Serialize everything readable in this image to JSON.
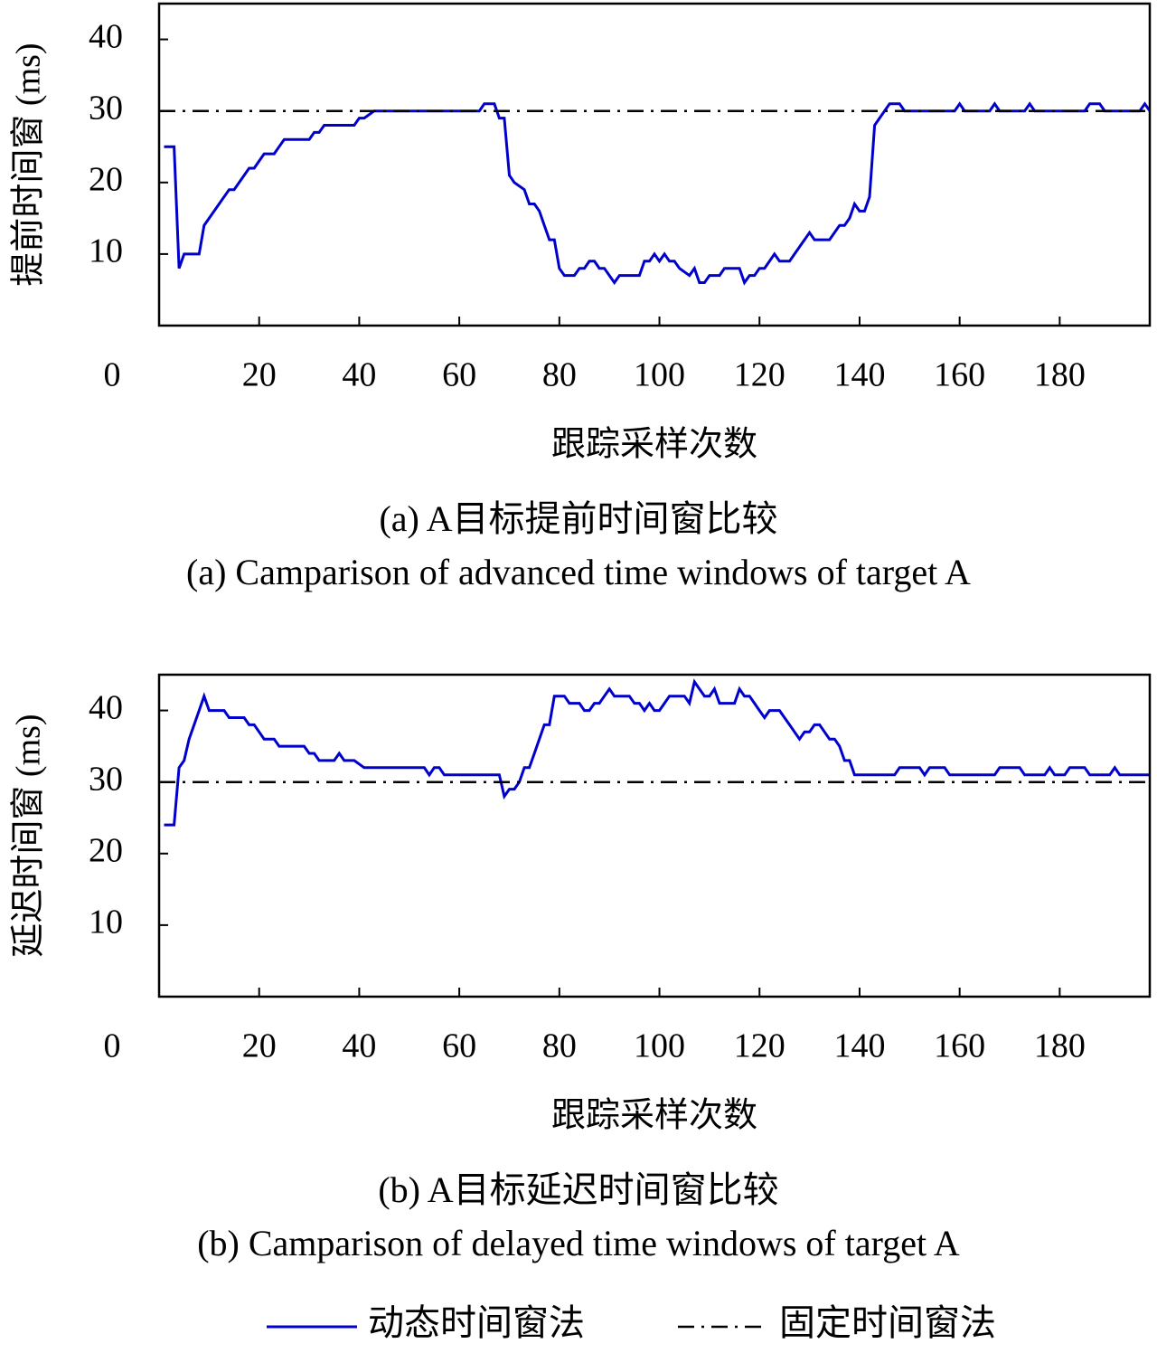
{
  "chart_data": [
    {
      "type": "line",
      "y_label": "提前时间窗 (ms)",
      "x_label": "跟踪采样次数",
      "caption": "(a) A目标提前时间窗比较",
      "caption_en": "(a) Camparison of advanced time windows of target A",
      "xlim": [
        0,
        198
      ],
      "ylim": [
        0,
        45
      ],
      "xticks": [
        0,
        20,
        40,
        60,
        80,
        100,
        120,
        140,
        160,
        180
      ],
      "yticks": [
        10,
        20,
        30,
        40
      ],
      "series": [
        {
          "name": "动态时间窗法",
          "color": "#0000cc",
          "dash": "solid",
          "x": [
            1,
            3,
            4,
            5,
            8,
            9,
            10,
            12,
            14,
            15,
            17,
            18,
            19,
            20,
            21,
            23,
            24,
            25,
            30,
            31,
            32,
            33,
            39,
            40,
            41,
            43,
            64,
            65,
            67,
            68,
            69,
            70,
            71,
            73,
            74,
            75,
            76,
            77,
            78,
            79,
            80,
            81,
            83,
            84,
            85,
            86,
            87,
            88,
            89,
            91,
            92,
            96,
            97,
            98,
            99,
            100,
            101,
            102,
            103,
            104,
            106,
            107,
            108,
            109,
            110,
            112,
            113,
            116,
            117,
            118,
            119,
            120,
            121,
            123,
            124,
            126,
            127,
            128,
            130,
            131,
            134,
            136,
            137,
            138,
            139,
            140,
            141,
            142,
            143,
            144,
            145,
            146,
            148,
            149,
            159,
            160,
            161,
            166,
            167,
            168,
            173,
            174,
            175,
            185,
            186,
            188,
            189,
            196,
            197,
            198
          ],
          "values": [
            25,
            25,
            8,
            10,
            10,
            14,
            15,
            17,
            19,
            19,
            21,
            22,
            22,
            23,
            24,
            24,
            25,
            26,
            26,
            27,
            27,
            28,
            28,
            29,
            29,
            30,
            30,
            31,
            31,
            29,
            29,
            21,
            20,
            19,
            17,
            17,
            16,
            14,
            12,
            12,
            8,
            7,
            7,
            8,
            8,
            9,
            9,
            8,
            8,
            6,
            7,
            7,
            9,
            9,
            10,
            9,
            10,
            9,
            9,
            8,
            7,
            8,
            6,
            6,
            7,
            7,
            8,
            8,
            6,
            7,
            7,
            8,
            8,
            10,
            9,
            9,
            10,
            11,
            13,
            12,
            12,
            14,
            14,
            15,
            17,
            16,
            16,
            18,
            28,
            29,
            30,
            31,
            31,
            30,
            30,
            31,
            30,
            30,
            31,
            30,
            30,
            31,
            30,
            30,
            31,
            31,
            30,
            30,
            31,
            30
          ]
        },
        {
          "name": "固定时间窗法",
          "color": "#000000",
          "dash": "dashdot",
          "x": [
            0,
            198
          ],
          "values": [
            30,
            30
          ]
        }
      ]
    },
    {
      "type": "line",
      "y_label": "延迟时间窗 (ms)",
      "x_label": "跟踪采样次数",
      "caption": "(b) A目标延迟时间窗比较",
      "caption_en": "(b) Camparison of delayed time windows of target A",
      "xlim": [
        0,
        198
      ],
      "ylim": [
        0,
        45
      ],
      "xticks": [
        0,
        20,
        40,
        60,
        80,
        100,
        120,
        140,
        160,
        180
      ],
      "yticks": [
        10,
        20,
        30,
        40
      ],
      "series": [
        {
          "color": "#0000cc",
          "dash": "solid",
          "x": [
            1,
            3,
            4,
            5,
            6,
            8,
            9,
            10,
            11,
            12,
            13,
            14,
            17,
            18,
            19,
            20,
            21,
            23,
            24,
            29,
            30,
            31,
            32,
            35,
            36,
            37,
            39,
            41,
            53,
            54,
            55,
            56,
            57,
            68,
            69,
            70,
            71,
            72,
            73,
            74,
            75,
            77,
            78,
            79,
            81,
            82,
            84,
            85,
            86,
            87,
            88,
            89,
            90,
            91,
            94,
            95,
            96,
            97,
            98,
            99,
            100,
            101,
            102,
            105,
            106,
            107,
            108,
            109,
            110,
            111,
            112,
            115,
            116,
            117,
            118,
            119,
            120,
            121,
            122,
            124,
            125,
            126,
            127,
            128,
            129,
            130,
            131,
            132,
            133,
            134,
            135,
            136,
            137,
            138,
            139,
            147,
            148,
            152,
            153,
            154,
            157,
            158,
            167,
            168,
            172,
            173,
            177,
            178,
            179,
            181,
            182,
            185,
            186,
            190,
            191,
            192,
            198
          ],
          "values": [
            24,
            24,
            32,
            33,
            36,
            40,
            42,
            40,
            40,
            40,
            40,
            39,
            39,
            38,
            38,
            37,
            36,
            36,
            35,
            35,
            34,
            34,
            33,
            33,
            34,
            33,
            33,
            32,
            32,
            31,
            32,
            32,
            31,
            31,
            28,
            29,
            29,
            30,
            32,
            32,
            34,
            38,
            38,
            42,
            42,
            41,
            41,
            40,
            40,
            41,
            41,
            42,
            43,
            42,
            42,
            41,
            41,
            40,
            41,
            40,
            40,
            41,
            42,
            42,
            41,
            44,
            43,
            42,
            42,
            43,
            41,
            41,
            43,
            42,
            42,
            41,
            40,
            39,
            40,
            40,
            39,
            38,
            37,
            36,
            37,
            37,
            38,
            38,
            37,
            36,
            36,
            35,
            33,
            33,
            31,
            31,
            32,
            32,
            31,
            32,
            32,
            31,
            31,
            32,
            32,
            31,
            31,
            32,
            31,
            31,
            32,
            32,
            31,
            31,
            32,
            31,
            31
          ]
        },
        {
          "color": "#000000",
          "dash": "dashdot",
          "x": [
            0,
            198
          ],
          "values": [
            30,
            30
          ]
        }
      ]
    }
  ]
}
